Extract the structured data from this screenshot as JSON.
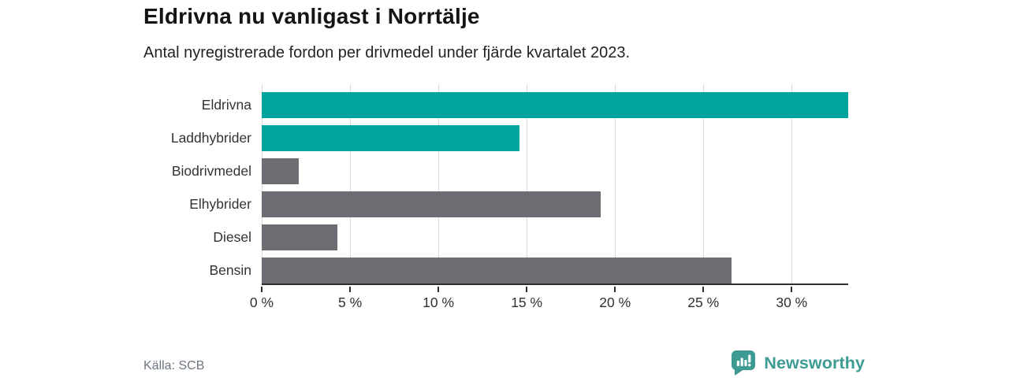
{
  "header": {
    "title": "Eldrivna nu vanligast i Norrtälje",
    "subtitle": "Antal nyregistrerade fordon per drivmedel under fjärde kvartalet 2023."
  },
  "chart_data": {
    "type": "bar",
    "orientation": "horizontal",
    "title": "Eldrivna nu vanligast i Norrtälje",
    "subtitle": "Antal nyregistrerade fordon per drivmedel under fjärde kvartalet 2023.",
    "categories": [
      "Eldrivna",
      "Laddhybrider",
      "Biodrivmedel",
      "Elhybrider",
      "Diesel",
      "Bensin"
    ],
    "values": [
      33.2,
      14.6,
      2.1,
      19.2,
      4.3,
      26.6
    ],
    "unit": "%",
    "bar_colors": [
      "#00A49C",
      "#00A49C",
      "#6D6D73",
      "#6D6D73",
      "#6D6D73",
      "#6D6D73"
    ],
    "xlabel": "",
    "ylabel": "",
    "xlim": [
      0,
      33.2
    ],
    "ticks": [
      0,
      5,
      10,
      15,
      20,
      25,
      30
    ],
    "tick_labels": [
      "0 %",
      "5 %",
      "10 %",
      "15 %",
      "20 %",
      "25 %",
      "30 %"
    ],
    "grid": true,
    "legend": false
  },
  "footer": {
    "source": "Källa: SCB",
    "brand": "Newsworthy"
  },
  "colors": {
    "accent_teal": "#00A49C",
    "bar_gray": "#6D6D73",
    "brand_teal": "#3D9B93",
    "gridline": "#DCDCDE",
    "axis_line": "#2E2E2E"
  }
}
